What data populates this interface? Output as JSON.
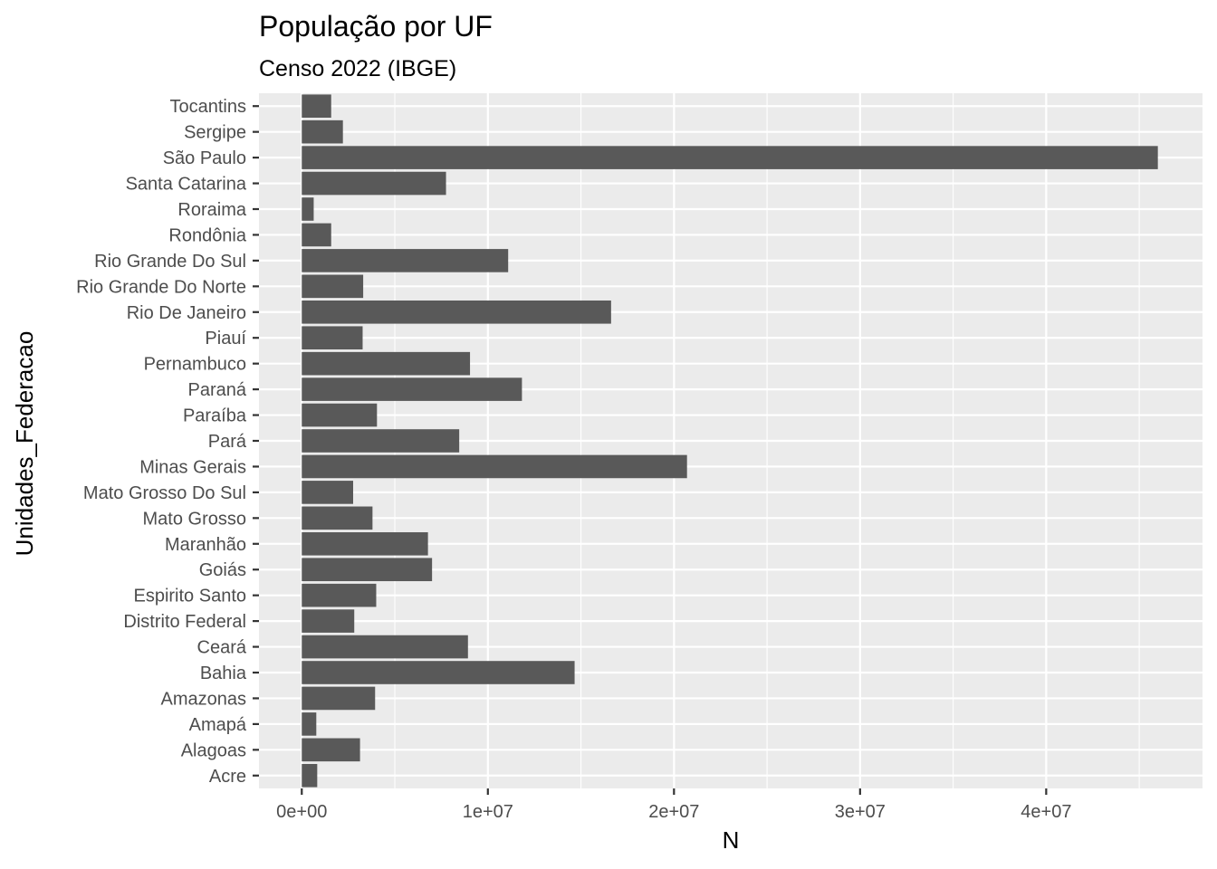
{
  "chart_data": {
    "type": "bar",
    "orientation": "horizontal",
    "title": "População por UF",
    "subtitle": "Censo 2022 (IBGE)",
    "xlabel": "N",
    "ylabel": "Unidades_Federacao",
    "xlim": [
      -2300000,
      48400000
    ],
    "x_ticks": [
      0,
      10000000,
      20000000,
      30000000,
      40000000
    ],
    "x_tick_labels": [
      "0e+00",
      "1e+07",
      "2e+07",
      "3e+07",
      "4e+07"
    ],
    "categories": [
      "Acre",
      "Alagoas",
      "Amapá",
      "Amazonas",
      "Bahia",
      "Ceará",
      "Distrito Federal",
      "Espirito Santo",
      "Goiás",
      "Maranhão",
      "Mato Grosso",
      "Mato Grosso Do Sul",
      "Minas Gerais",
      "Pará",
      "Paraíba",
      "Paraná",
      "Pernambuco",
      "Piauí",
      "Rio De Janeiro",
      "Rio Grande Do Norte",
      "Rio Grande Do Sul",
      "Rondônia",
      "Roraima",
      "Santa Catarina",
      "São Paulo",
      "Sergipe",
      "Tocantins"
    ],
    "values": [
      830000,
      3130000,
      780000,
      3940000,
      14660000,
      8930000,
      2820000,
      4000000,
      7000000,
      6780000,
      3800000,
      2760000,
      20700000,
      8460000,
      4040000,
      11830000,
      9040000,
      3270000,
      16620000,
      3300000,
      11090000,
      1580000,
      640000,
      7750000,
      46000000,
      2210000,
      1580000
    ],
    "bar_color": "#595959",
    "panel_background": "#ebebeb",
    "grid": true,
    "legend": "none"
  }
}
